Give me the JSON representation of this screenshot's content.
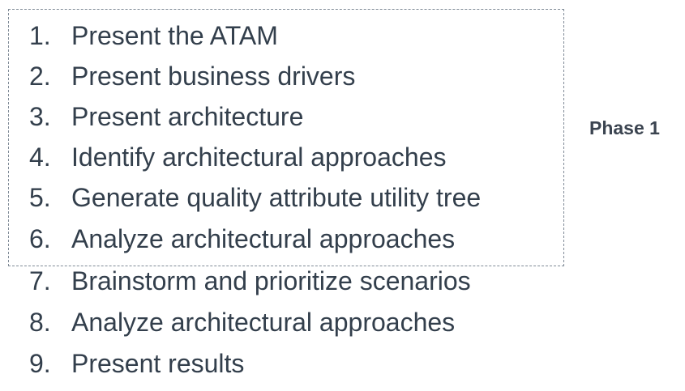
{
  "steps": [
    {
      "number": "1.",
      "text": "Present the ATAM"
    },
    {
      "number": "2.",
      "text": "Present business drivers"
    },
    {
      "number": "3.",
      "text": "Present architecture"
    },
    {
      "number": "4.",
      "text": "Identify architectural approaches"
    },
    {
      "number": "5.",
      "text": "Generate quality attribute utility tree"
    },
    {
      "number": "6.",
      "text": "Analyze architectural approaches"
    },
    {
      "number": "7.",
      "text": "Brainstorm and prioritize scenarios"
    },
    {
      "number": "8.",
      "text": "Analyze architectural approaches"
    },
    {
      "number": "9.",
      "text": "Present results"
    }
  ],
  "phase": {
    "label": "Phase 1"
  },
  "colors": {
    "text": "#333f4c",
    "box_border": "#7f8a96"
  }
}
